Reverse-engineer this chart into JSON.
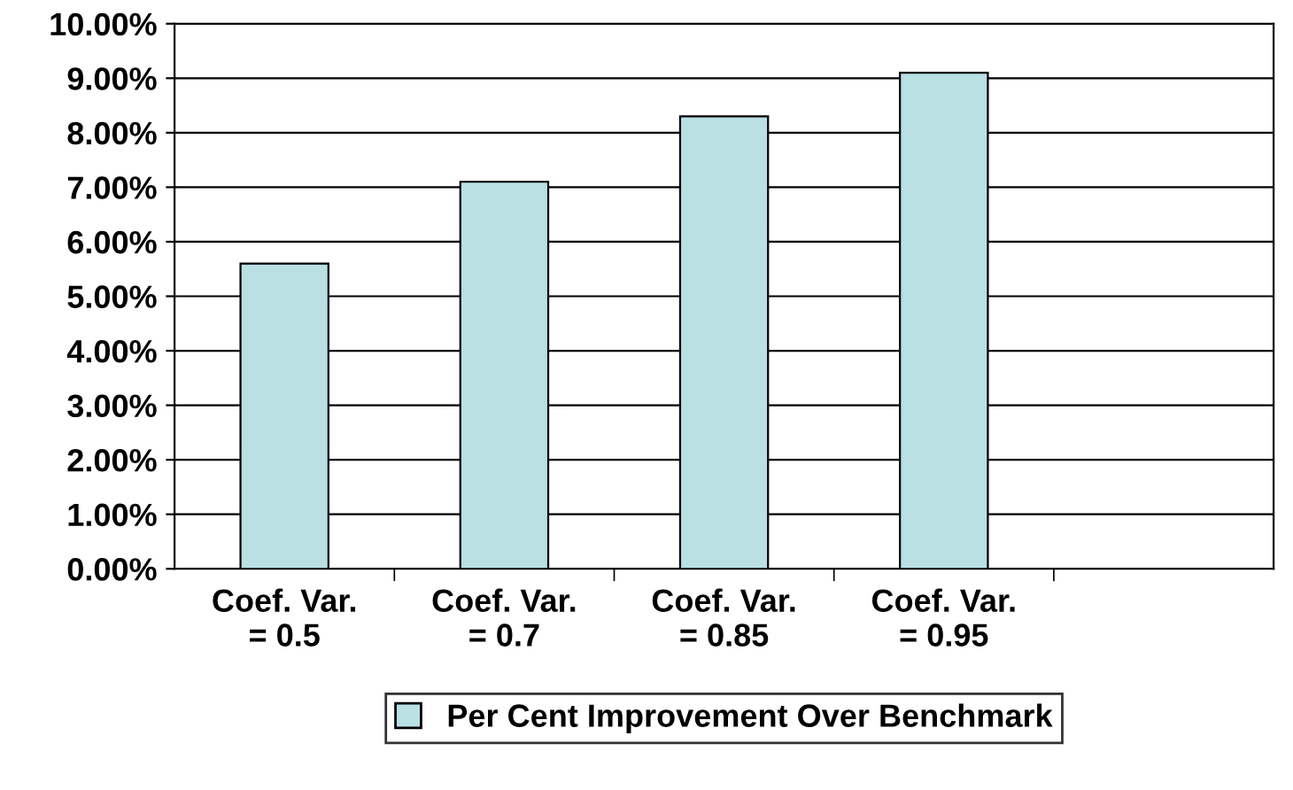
{
  "chart_data": {
    "type": "bar",
    "categories": [
      "Coef. Var.\n= 0.5",
      "Coef. Var.\n= 0.7",
      "Coef. Var.\n= 0.85",
      "Coef. Var.\n= 0.95",
      null
    ],
    "series": [
      {
        "name": "Per Cent Improvement Over Benchmark",
        "color": "#b9e0e3",
        "values": [
          5.6,
          7.1,
          8.3,
          9.1,
          null
        ]
      }
    ],
    "ylim": [
      0,
      10
    ],
    "yticks": [
      {
        "value": 0,
        "label": "0.00%"
      },
      {
        "value": 1,
        "label": "1.00%"
      },
      {
        "value": 2,
        "label": "2.00%"
      },
      {
        "value": 3,
        "label": "3.00%"
      },
      {
        "value": 4,
        "label": "4.00%"
      },
      {
        "value": 5,
        "label": "5.00%"
      },
      {
        "value": 6,
        "label": "6.00%"
      },
      {
        "value": 7,
        "label": "7.00%"
      },
      {
        "value": 8,
        "label": "8.00%"
      },
      {
        "value": 9,
        "label": "9.00%"
      },
      {
        "value": 10,
        "label": "10.00%"
      }
    ],
    "grid": "y",
    "legend": "bottom"
  }
}
